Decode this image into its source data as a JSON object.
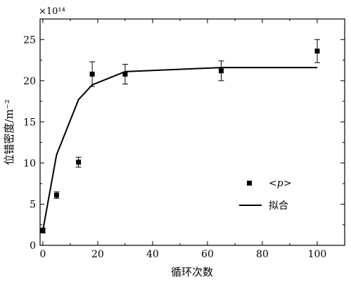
{
  "chart_data": {
    "type": "scatter",
    "title": "",
    "xlabel": "循环次数",
    "ylabel": "位错密度/m⁻²",
    "y_multiplier": "×10¹⁴",
    "xlim": [
      -1,
      110
    ],
    "ylim": [
      0,
      27.5
    ],
    "xticks": [
      0,
      20,
      40,
      60,
      80,
      100
    ],
    "yticks": [
      0,
      5,
      10,
      15,
      20,
      25
    ],
    "grid": false,
    "legend_position": "right-middle",
    "series": [
      {
        "name": "<p>",
        "kind": "points",
        "marker": "square",
        "points": [
          {
            "x": 0,
            "y": 1.8,
            "err": 0.3
          },
          {
            "x": 5,
            "y": 6.1,
            "err": 0.4
          },
          {
            "x": 13,
            "y": 10.1,
            "err": 0.6
          },
          {
            "x": 18,
            "y": 20.8,
            "err": 1.5
          },
          {
            "x": 30,
            "y": 20.8,
            "err": 1.2
          },
          {
            "x": 65,
            "y": 21.2,
            "err": 1.2
          },
          {
            "x": 100,
            "y": 23.6,
            "err": 1.4
          }
        ]
      },
      {
        "name": "拟合",
        "kind": "line",
        "points": [
          {
            "x": 0,
            "y": 1.8
          },
          {
            "x": 5,
            "y": 11.0
          },
          {
            "x": 13,
            "y": 17.7
          },
          {
            "x": 18,
            "y": 19.5
          },
          {
            "x": 30,
            "y": 21.1
          },
          {
            "x": 65,
            "y": 21.6
          },
          {
            "x": 100,
            "y": 21.6
          }
        ]
      }
    ]
  }
}
